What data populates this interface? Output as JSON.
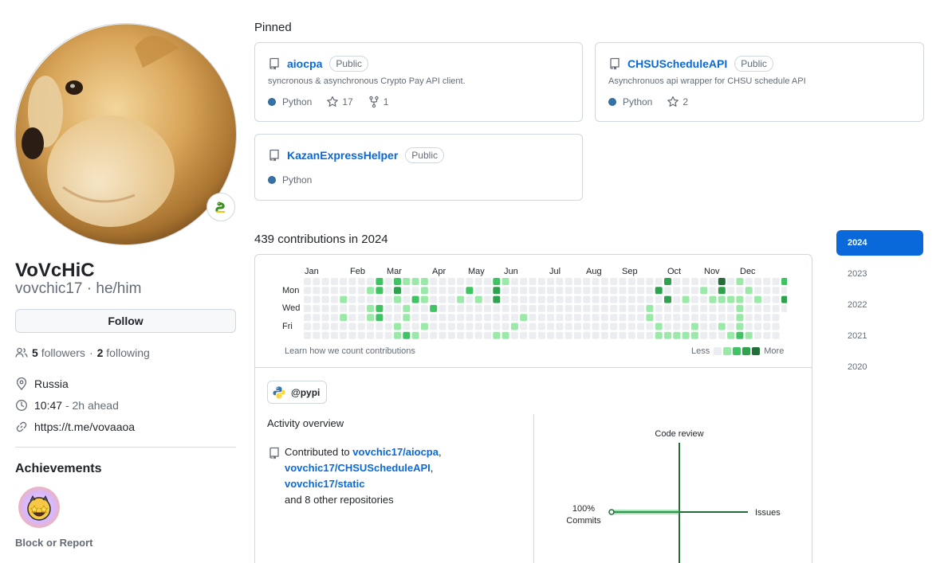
{
  "profile": {
    "name": "VoVcHiC",
    "login_line": "vovchic17 · he/him",
    "follow_label": "Follow",
    "followers_count": "5",
    "followers_label": "followers",
    "separator": "·",
    "following_count": "2",
    "following_label": "following",
    "location": "Russia",
    "local_time": "10:47",
    "time_note": "- 2h ahead",
    "website": "https://t.me/vovaaoa",
    "achievements_title": "Achievements",
    "block_label": "Block or Report",
    "status_icon": "snake-emoji"
  },
  "pinned": {
    "title": "Pinned",
    "repos": [
      {
        "name": "aiocpa",
        "visibility": "Public",
        "description": "syncronous & asynchronous Crypto Pay API client.",
        "language": "Python",
        "stars": "17",
        "forks": "1"
      },
      {
        "name": "CHSUScheduleAPI",
        "visibility": "Public",
        "description": "Asynchronuos api wrapper for CHSU schedule API",
        "language": "Python",
        "stars": "2"
      },
      {
        "name": "KazanExpressHelper",
        "visibility": "Public",
        "description": "",
        "language": "Python"
      }
    ],
    "language_color": "#3572A5"
  },
  "contributions": {
    "title": "439 contributions in 2024",
    "months": [
      "Jan",
      "Feb",
      "Mar",
      "Apr",
      "May",
      "Jun",
      "Jul",
      "Aug",
      "Sep",
      "Oct",
      "Nov",
      "Dec"
    ],
    "day_labels": [
      "Mon",
      "Wed",
      "Fri"
    ],
    "learn_link": "Learn how we count contributions",
    "legend_less": "Less",
    "legend_more": "More",
    "level_colors": [
      "#ebedf0",
      "#9be9a8",
      "#40c463",
      "#30a14e",
      "#216e39"
    ],
    "org": "@pypi",
    "activity_title": "Activity overview",
    "contributed_prefix": "Contributed to",
    "repo_links": [
      "vovchic17/aiocpa",
      "vovchic17/CHSUScheduleAPI",
      "vovchic17/static"
    ],
    "comma": ",",
    "contributed_suffix": "and 8 other repositories",
    "radar": {
      "code_review_label": "Code review",
      "issues_label": "Issues",
      "commits_pct": "100%",
      "commits_label": "Commits"
    }
  },
  "years": [
    "2024",
    "2023",
    "2022",
    "2021",
    "2020"
  ],
  "active_year": "2024"
}
